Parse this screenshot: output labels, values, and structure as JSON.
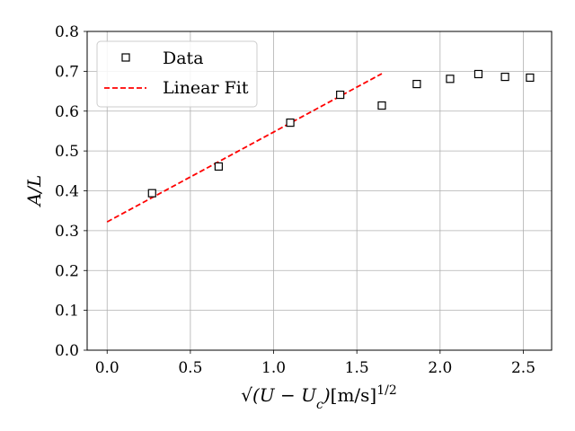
{
  "chart_data": {
    "type": "scatter",
    "xlabel": "√(U − U_c)[m/s]^{1/2}",
    "ylabel": "A/L",
    "xlim": [
      -0.12,
      2.67
    ],
    "ylim": [
      0.0,
      0.8
    ],
    "x_ticks": [
      0.0,
      0.5,
      1.0,
      1.5,
      2.0,
      2.5
    ],
    "x_tick_labels": [
      "0.0",
      "0.5",
      "1.0",
      "1.5",
      "2.0",
      "2.5"
    ],
    "y_ticks": [
      0.0,
      0.1,
      0.2,
      0.3,
      0.4,
      0.5,
      0.6,
      0.7,
      0.8
    ],
    "y_tick_labels": [
      "0.0",
      "0.1",
      "0.2",
      "0.3",
      "0.4",
      "0.5",
      "0.6",
      "0.7",
      "0.8"
    ],
    "grid": true,
    "legend_position": "top-left",
    "series": [
      {
        "name": "Data",
        "kind": "scatter",
        "marker": "square",
        "color": "#000000",
        "x": [
          0.27,
          0.67,
          1.1,
          1.4,
          1.65,
          1.86,
          2.06,
          2.23,
          2.39,
          2.54
        ],
        "y": [
          0.394,
          0.461,
          0.571,
          0.641,
          0.614,
          0.668,
          0.681,
          0.693,
          0.686,
          0.684
        ]
      },
      {
        "name": "Linear Fit",
        "kind": "line",
        "style": "dashed",
        "color": "#ff0000",
        "x": [
          0.0,
          1.65
        ],
        "y": [
          0.322,
          0.694
        ]
      }
    ]
  }
}
